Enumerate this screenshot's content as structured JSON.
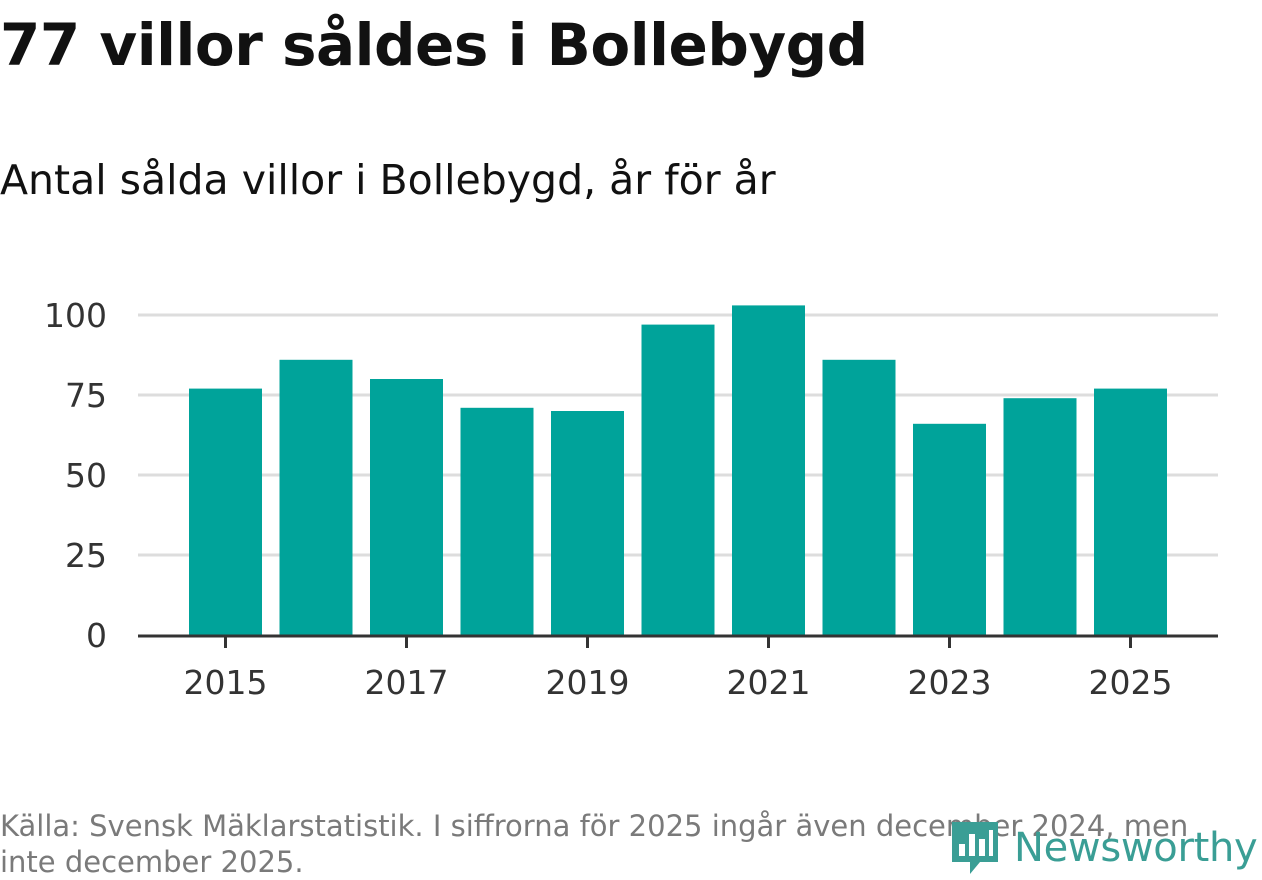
{
  "title": "77 villor såldes i Bollebygd",
  "subtitle": "Antal sålda villor i Bollebygd, år för år",
  "footer": "Källa: Svensk Mäklarstatistik. I siffrorna för 2025 ingår även december 2024, men inte december 2025.",
  "logo": {
    "text": "Newsworthy",
    "icon": "newsworthy-logo-icon"
  },
  "colors": {
    "bar": "#00a39a",
    "grid": "#dddddd",
    "axis": "#333333",
    "logo": "#3a9e95"
  },
  "chart_data": {
    "type": "bar",
    "categories": [
      "2015",
      "2016",
      "2017",
      "2018",
      "2019",
      "2020",
      "2021",
      "2022",
      "2023",
      "2024",
      "2025"
    ],
    "series": [
      {
        "values": [
          77,
          86,
          80,
          71,
          70,
          97,
          103,
          86,
          66,
          74,
          77
        ]
      }
    ],
    "xtick_labels": [
      "2015",
      "2017",
      "2019",
      "2021",
      "2023",
      "2025"
    ],
    "ytick_labels": [
      "0",
      "25",
      "50",
      "75",
      "100"
    ],
    "ytick_values": [
      0,
      25,
      50,
      75,
      100
    ],
    "ylim": [
      0,
      100
    ],
    "grid": true,
    "legend": "none",
    "xlabel": "",
    "ylabel": ""
  }
}
